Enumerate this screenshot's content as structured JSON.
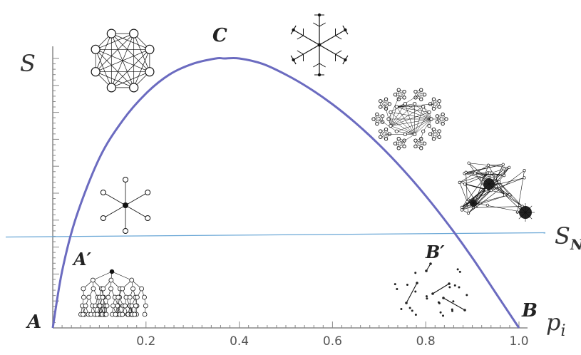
{
  "chart_data": {
    "type": "line",
    "title": "",
    "xlabel": "p_i",
    "ylabel": "S",
    "xlim": [
      0,
      1
    ],
    "ylim": [
      0,
      1
    ],
    "grid": false,
    "x_ticks": [
      "0.2",
      "0.4",
      "0.6",
      "0.8",
      "1.0"
    ],
    "series": [
      {
        "name": "",
        "color": "#6b6bc0",
        "x": [
          0.0,
          0.02,
          0.05,
          0.1,
          0.15,
          0.2,
          0.25,
          0.3,
          0.35,
          0.368,
          0.4,
          0.45,
          0.5,
          0.55,
          0.6,
          0.65,
          0.7,
          0.75,
          0.8,
          0.85,
          0.9,
          0.95,
          1.0
        ],
        "y": [
          0.0,
          0.21,
          0.41,
          0.63,
          0.77,
          0.87,
          0.94,
          0.98,
          1.0,
          1.0,
          1.0,
          0.98,
          0.94,
          0.89,
          0.83,
          0.76,
          0.68,
          0.59,
          0.49,
          0.38,
          0.26,
          0.13,
          0.0
        ]
      }
    ],
    "reference_line": {
      "label": "S_N",
      "label_main": "S",
      "label_sub": "N",
      "y": 0.34,
      "color": "#6aa7d6"
    },
    "annotations": {
      "A": "A",
      "A_prime": "A′",
      "B": "B",
      "B_prime": "B′",
      "C": "C"
    },
    "axis_label_main": "p",
    "axis_label_sub": "i"
  },
  "illustrations": [
    "complete-graph-icon",
    "snowflake-graph-icon",
    "clustered-graph-icon",
    "random-graph-icon",
    "star-graph-icon",
    "tree-graph-icon",
    "disconnected-graph-icon"
  ]
}
